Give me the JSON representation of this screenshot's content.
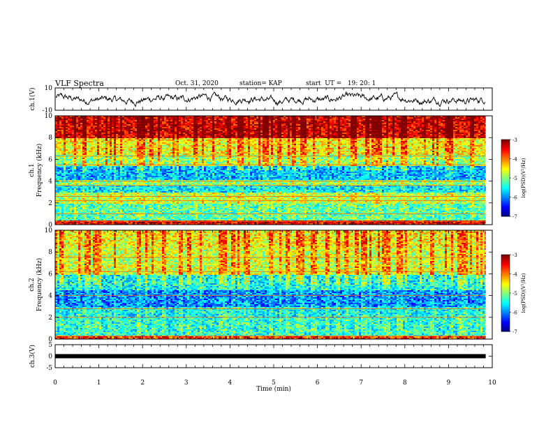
{
  "header": {
    "title": "VLF Spectra",
    "date": "Oct. 31, 2020",
    "station": "station= KAP",
    "start": "start  UT =   19: 20: 1"
  },
  "chart_data": [
    {
      "type": "line",
      "panel": "ch.1 waveform",
      "ylabel": "ch.1(V)",
      "ylim": [
        -10,
        10
      ],
      "yticks": [
        10,
        -10
      ],
      "x_range_min": [
        0,
        9.85
      ],
      "approx_level": 0,
      "approx_amplitude": 5
    },
    {
      "type": "heatmap",
      "panel": "ch.1 spectrogram",
      "ylabel": "ch.1 Frequency (kHz)",
      "ylim": [
        0,
        10
      ],
      "yticks": [
        0,
        2,
        4,
        6,
        8,
        10
      ],
      "colorbar": {
        "label": "log(PSD)(V²/Hz)",
        "range": [
          -7,
          -3
        ],
        "ticks": [
          -3,
          -4,
          -5,
          -6,
          -7
        ]
      },
      "level_by_band_khz": [
        {
          "from": 0,
          "to": 0.5,
          "log_psd": -3.5
        },
        {
          "from": 0.5,
          "to": 2.0,
          "log_psd": -5.2
        },
        {
          "from": 2.0,
          "to": 3.0,
          "log_psd": -4.8
        },
        {
          "from": 3.0,
          "to": 3.7,
          "log_psd": -5.6
        },
        {
          "from": 3.7,
          "to": 4.2,
          "log_psd": -5.0
        },
        {
          "from": 4.2,
          "to": 5.5,
          "log_psd": -5.8
        },
        {
          "from": 5.5,
          "to": 6.5,
          "log_psd": -4.9
        },
        {
          "from": 6.5,
          "to": 8.0,
          "log_psd": -4.5
        },
        {
          "from": 8.0,
          "to": 10.0,
          "log_psd": -3.4
        }
      ],
      "lines_khz": [
        0.3,
        1.0,
        2.2,
        2.6,
        3.6,
        4.0,
        5.5,
        6.3
      ],
      "x_range_min": [
        0,
        9.85
      ]
    },
    {
      "type": "heatmap",
      "panel": "ch.2 spectrogram",
      "ylabel": "ch.2 Frequency (kHz)",
      "ylim": [
        0,
        10
      ],
      "yticks": [
        0,
        2,
        4,
        6,
        8,
        10
      ],
      "colorbar": {
        "label": "log(PSD)(V²/Hz)",
        "range": [
          -7,
          -3
        ],
        "ticks": [
          -3,
          -4,
          -5,
          -6,
          -7
        ]
      },
      "level_by_band_khz": [
        {
          "from": 0,
          "to": 0.3,
          "log_psd": -3.8
        },
        {
          "from": 0.3,
          "to": 2.0,
          "log_psd": -5.4
        },
        {
          "from": 2.0,
          "to": 3.0,
          "log_psd": -5.5
        },
        {
          "from": 3.0,
          "to": 4.5,
          "log_psd": -6.0
        },
        {
          "from": 4.5,
          "to": 6.0,
          "log_psd": -5.5
        },
        {
          "from": 6.0,
          "to": 8.5,
          "log_psd": -4.7
        },
        {
          "from": 8.5,
          "to": 10.0,
          "log_psd": -4.5
        }
      ],
      "lines_khz": [
        0.3,
        2.0,
        2.8,
        4.0,
        6.2,
        7.5
      ],
      "x_range_min": [
        0,
        9.85
      ]
    },
    {
      "type": "line",
      "panel": "ch.3 signal",
      "ylabel": "ch.3(V)",
      "ylim": [
        -5,
        5
      ],
      "yticks": [
        5,
        0,
        -5
      ],
      "xlabel": "Time  (min)",
      "xlim": [
        0,
        10
      ],
      "xticks": [
        0,
        1,
        2,
        3,
        4,
        5,
        6,
        7,
        8,
        9,
        10
      ],
      "x_range_min": [
        0,
        9.85
      ],
      "constant_level": 0
    }
  ]
}
